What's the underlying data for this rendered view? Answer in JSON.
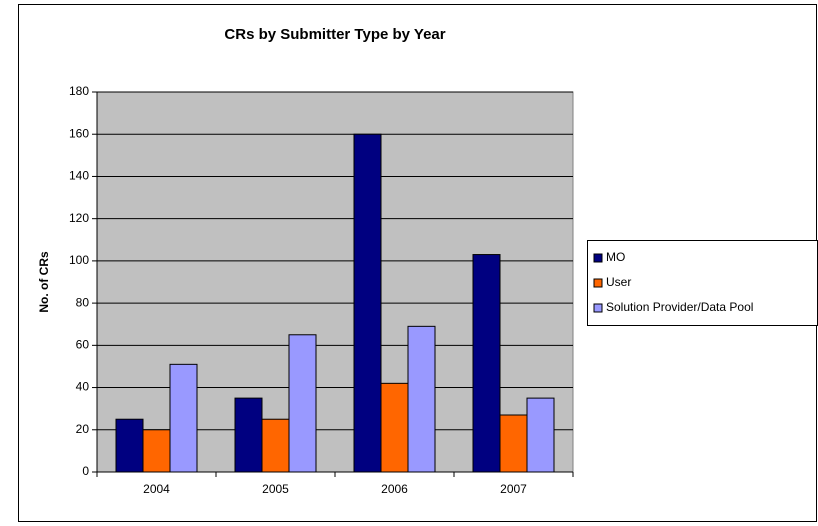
{
  "chart_data": {
    "type": "bar",
    "title": "CRs by Submitter Type by Year",
    "y_label": "No. of CRs",
    "categories": [
      "2004",
      "2005",
      "2006",
      "2007"
    ],
    "series": [
      {
        "name": "MO",
        "color": "#000080",
        "values": [
          25,
          35,
          160,
          103
        ]
      },
      {
        "name": "User",
        "color": "#ff6600",
        "values": [
          20,
          25,
          42,
          27
        ]
      },
      {
        "name": "Solution Provider/Data Pool",
        "color": "#9999ff",
        "values": [
          51,
          65,
          69,
          35
        ]
      }
    ],
    "ylim": [
      0,
      180
    ],
    "yticks": [
      0,
      20,
      40,
      60,
      80,
      100,
      120,
      140,
      160,
      180
    ],
    "grid": true,
    "legend": "right",
    "plot_background": "#c0c0c0"
  }
}
